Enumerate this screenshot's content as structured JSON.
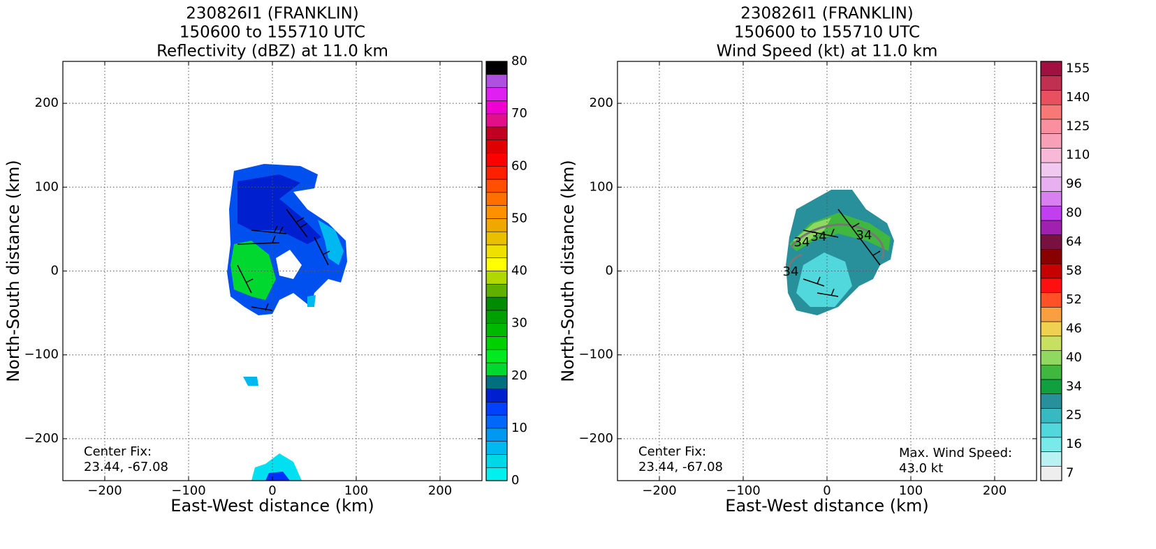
{
  "chart_data": [
    {
      "type": "contourf",
      "title": "230826I1 (FRANKLIN)",
      "subtitle": "150600 to 155710 UTC",
      "field_title": "Reflectivity (dBZ) at 11.0 km",
      "xlabel": "East-West distance (km)",
      "ylabel": "North-South distance (km)",
      "xlim": [
        -250,
        250
      ],
      "ylim": [
        -250,
        250
      ],
      "xticks": [
        {
          "value": -200,
          "label": "−200"
        },
        {
          "value": -100,
          "label": "−100"
        },
        0,
        100,
        200
      ],
      "yticks": [
        {
          "value": -200,
          "label": "−200"
        },
        {
          "value": -100,
          "label": "−100"
        },
        0,
        100,
        200
      ],
      "grid": true,
      "annotations": [
        "Center Fix:",
        "23.44, -67.08"
      ],
      "colorbar": {
        "lim": [
          0,
          80
        ],
        "ticks": [
          0,
          10,
          20,
          30,
          40,
          50,
          60,
          70,
          80
        ],
        "colors": [
          "#00f0f0",
          "#00d8e8",
          "#00b8f0",
          "#0098f0",
          "#0068f8",
          "#0040ff",
          "#0020d0",
          "#007080",
          "#00d830",
          "#00e820",
          "#00d000",
          "#00b800",
          "#00a000",
          "#008c00",
          "#60b000",
          "#b0d800",
          "#ffff00",
          "#f0e000",
          "#e8c000",
          "#f0a800",
          "#ff9000",
          "#ff7000",
          "#ff5000",
          "#ff2000",
          "#ff0000",
          "#e00000",
          "#c00020",
          "#e0108a",
          "#f000d0",
          "#e020f0",
          "#b050e0",
          "#000000"
        ]
      }
    },
    {
      "type": "contourf",
      "title": "230826I1 (FRANKLIN)",
      "subtitle": "150600 to 155710 UTC",
      "field_title": "Wind Speed (kt) at 11.0 km",
      "xlabel": "East-West distance (km)",
      "ylabel": "North-South distance (km)",
      "xlim": [
        -250,
        250
      ],
      "ylim": [
        -250,
        250
      ],
      "xticks": [
        {
          "value": -200,
          "label": "−200"
        },
        {
          "value": -100,
          "label": "−100"
        },
        0,
        100,
        200
      ],
      "yticks": [
        {
          "value": -200,
          "label": "−200"
        },
        {
          "value": -100,
          "label": "−100"
        },
        0,
        100,
        200
      ],
      "grid": true,
      "annotations": [
        "Center Fix:",
        "23.44, -67.08",
        "Max. Wind Speed:",
        "43.0 kt"
      ],
      "contour_level": 34,
      "colorbar": {
        "ticks": [
          7,
          16,
          25,
          34,
          40,
          46,
          52,
          58,
          64,
          80,
          96,
          110,
          125,
          140,
          155
        ],
        "colors": [
          "#eeeeee",
          "#b8f2f2",
          "#78eaea",
          "#50d8dc",
          "#38b8c0",
          "#28909a",
          "#10a040",
          "#40b840",
          "#90d860",
          "#c8e060",
          "#f0d050",
          "#f8a040",
          "#ff5028",
          "#ff1010",
          "#c80000",
          "#880000",
          "#781040",
          "#a020b0",
          "#c040f0",
          "#d880f0",
          "#e8b0f0",
          "#f0c8f0",
          "#f8b8d8",
          "#f8a0b8",
          "#f890a0",
          "#f87878",
          "#e85060",
          "#c03050",
          "#a01040"
        ]
      }
    }
  ]
}
